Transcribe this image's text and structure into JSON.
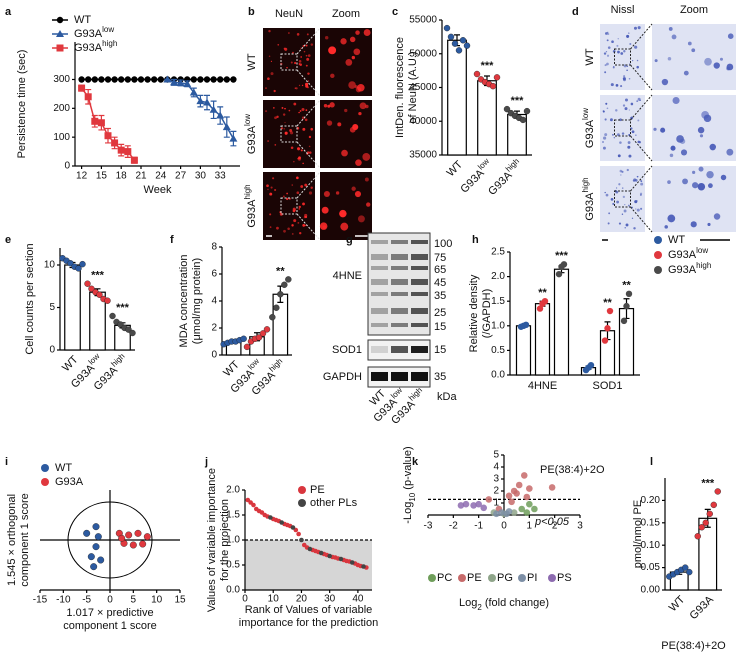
{
  "chart_data": [
    {
      "type": "line",
      "panel": "a",
      "ylabel": "Persistence time (sec)",
      "xlabel": "Week",
      "xlim": [
        11,
        36
      ],
      "ylim": [
        0,
        430
      ],
      "xticks": [
        12,
        15,
        18,
        21,
        24,
        27,
        30,
        33
      ],
      "yticks": [
        0,
        100,
        200,
        300
      ],
      "series": [
        {
          "name": "WT",
          "color": "#000000",
          "marker": "circle",
          "x": [
            12,
            13,
            14,
            15,
            16,
            17,
            18,
            19,
            20,
            21,
            22,
            23,
            24,
            25,
            26,
            27,
            28,
            29,
            30,
            31,
            32,
            33,
            34,
            35
          ],
          "values": [
            300,
            300,
            300,
            300,
            300,
            300,
            300,
            300,
            300,
            300,
            300,
            300,
            300,
            300,
            300,
            300,
            300,
            300,
            300,
            300,
            300,
            300,
            300,
            300
          ]
        },
        {
          "name": "G93Alow",
          "color": "#2c5aa0",
          "marker": "triangle",
          "x": [
            25,
            26,
            27,
            28,
            29,
            30,
            31,
            32,
            33,
            34,
            35
          ],
          "values": [
            300,
            290,
            288,
            285,
            255,
            225,
            220,
            195,
            175,
            135,
            95
          ],
          "errors": [
            0,
            10,
            10,
            10,
            15,
            20,
            25,
            30,
            30,
            35,
            25
          ]
        },
        {
          "name": "G93Ahigh",
          "color": "#e0383e",
          "marker": "square",
          "x": [
            12,
            13,
            14,
            15,
            16,
            17,
            18,
            19,
            20
          ],
          "values": [
            270,
            240,
            155,
            150,
            105,
            80,
            55,
            50,
            20
          ],
          "errors": [
            10,
            25,
            20,
            25,
            25,
            20,
            20,
            20,
            10
          ]
        }
      ]
    },
    {
      "type": "dotbar",
      "panel": "c",
      "ylabel": [
        "IntDen. fluorescence",
        "of NeuN (A.U.)"
      ],
      "categories": [
        "WT",
        "G93Alow",
        "G93Ahigh"
      ],
      "values": [
        52000,
        46000,
        41000
      ],
      "errors": [
        800,
        700,
        500
      ],
      "points": [
        [
          53800,
          52500,
          51500,
          50500,
          52000,
          51200
        ],
        [
          47000,
          46200,
          45800,
          45500,
          45200,
          46500
        ],
        [
          41800,
          41200,
          40800,
          40500,
          40200,
          41500
        ]
      ],
      "point_colors": [
        "#2c5aa0",
        "#e0383e",
        "#4a4a4a"
      ],
      "sig": [
        null,
        "***",
        "***"
      ],
      "ylim": [
        35000,
        55000
      ],
      "yticks": [
        35000,
        40000,
        45000,
        50000,
        55000
      ]
    },
    {
      "type": "dotbar",
      "panel": "e",
      "ylabel": "Cell counts per section",
      "categories": [
        "WT",
        "G93Alow",
        "G93Ahigh"
      ],
      "values": [
        10,
        6.8,
        2.9
      ],
      "errors": [
        0.3,
        0.4,
        0.3
      ],
      "points": [
        [
          10.8,
          10.5,
          10.2,
          9.8,
          9.6,
          10.1
        ],
        [
          7.8,
          7.2,
          6.8,
          6.5,
          6.0,
          5.8
        ],
        [
          4.0,
          3.3,
          3.0,
          2.6,
          2.4,
          2.0
        ]
      ],
      "point_colors": [
        "#2c5aa0",
        "#e0383e",
        "#4a4a4a"
      ],
      "sig": [
        null,
        "***",
        "***"
      ],
      "ylim": [
        0,
        12
      ],
      "yticks": [
        0,
        5,
        10
      ]
    },
    {
      "type": "dotbar",
      "panel": "f",
      "ylabel": [
        "MDA concentration",
        "(μmol/mg protein)"
      ],
      "categories": [
        "WT",
        "G93Alow",
        "G93Ahigh"
      ],
      "values": [
        1.0,
        1.35,
        4.5
      ],
      "errors": [
        0.1,
        0.3,
        0.6
      ],
      "points": [
        [
          0.8,
          0.9,
          1.0,
          1.0,
          1.1,
          1.2
        ],
        [
          0.6,
          1.0,
          1.2,
          1.3,
          1.6,
          1.9
        ],
        [
          2.8,
          3.5,
          4.5,
          5.2,
          5.6
        ]
      ],
      "point_colors": [
        "#2c5aa0",
        "#e0383e",
        "#4a4a4a"
      ],
      "sig": [
        null,
        null,
        "**"
      ],
      "ylim": [
        0,
        8
      ],
      "yticks": [
        0,
        2,
        4,
        6,
        8
      ]
    },
    {
      "type": "groupbar",
      "panel": "h",
      "ylabel": [
        "Relative density",
        "(/GAPDH)"
      ],
      "categories": [
        "4HNE",
        "SOD1"
      ],
      "ylim": [
        0,
        2.5
      ],
      "yticks": [
        {
          "value": 0,
          "label": "0.0"
        },
        0.5,
        {
          "value": 1,
          "label": "1.0"
        },
        1.5,
        {
          "value": 2,
          "label": "2.0"
        },
        2.5
      ],
      "series": [
        {
          "name": "WT",
          "color": "#2c5aa0",
          "values": [
            1.0,
            0.15
          ],
          "errors": [
            0.02,
            0.03
          ],
          "points": [
            [
              0.98,
              1.0,
              1.02
            ],
            [
              0.1,
              0.15,
              0.2
            ]
          ],
          "sig": [
            null,
            null
          ]
        },
        {
          "name": "G93Alow",
          "color": "#e0383e",
          "values": [
            1.45,
            0.9
          ],
          "errors": [
            0.05,
            0.18
          ],
          "points": [
            [
              1.35,
              1.45,
              1.5
            ],
            [
              0.7,
              0.95,
              1.3
            ]
          ],
          "sig": [
            "**",
            "**"
          ]
        },
        {
          "name": "G93Ahigh",
          "color": "#4a4a4a",
          "values": [
            2.15,
            1.35
          ],
          "errors": [
            0.07,
            0.2
          ],
          "points": [
            [
              2.05,
              2.2,
              2.25
            ],
            [
              1.1,
              1.4,
              1.65
            ]
          ],
          "sig": [
            "***",
            "**"
          ]
        }
      ]
    },
    {
      "type": "scatter",
      "panel": "i",
      "xlabel": [
        "1.017 × predictive",
        "component 1 score"
      ],
      "ylabel": [
        "1.545 × orthogonal",
        "component 1 score"
      ],
      "xlim": [
        -15,
        15
      ],
      "ylim": [
        -15,
        15
      ],
      "xticks": [
        -15,
        -10,
        -5,
        0,
        5,
        10,
        15
      ],
      "series": [
        {
          "name": "WT",
          "color": "#2c5aa0",
          "x": [
            -3,
            -2.5,
            -5,
            -3,
            -4,
            -2,
            -3.5
          ],
          "values": [
            4,
            1,
            2,
            -2,
            -5,
            -6,
            -8
          ]
        },
        {
          "name": "G93A",
          "color": "#e0383e",
          "x": [
            2,
            4,
            6,
            8,
            3,
            5,
            7,
            2.5
          ],
          "values": [
            2,
            1.5,
            2,
            1,
            -1,
            -1.5,
            -1.2,
            0.5
          ]
        }
      ]
    },
    {
      "type": "vip",
      "panel": "j",
      "xlabel": [
        "Rank of Values of variable",
        "importance for the prediction"
      ],
      "ylabel": [
        "Values of variable importance",
        "for the projection"
      ],
      "xlim": [
        0,
        45
      ],
      "ylim": [
        0,
        2
      ],
      "xticks": [
        0,
        10,
        20,
        30,
        40
      ],
      "yticks": [
        {
          "value": 0,
          "label": "0.0"
        },
        0.5,
        {
          "value": 1,
          "label": "1.0"
        },
        1.5,
        {
          "value": 2,
          "label": "2.0"
        }
      ],
      "threshold": 1,
      "series": [
        {
          "name": "PE",
          "color": "#d9363e",
          "x": [
            1,
            2,
            3,
            4,
            5,
            6,
            7,
            8,
            10,
            11,
            12,
            14,
            15,
            16,
            18,
            19,
            21,
            22,
            24,
            25,
            26,
            28,
            29,
            31,
            32,
            33,
            35,
            36,
            37,
            39,
            40,
            41,
            43
          ],
          "values": [
            1.8,
            1.75,
            1.7,
            1.62,
            1.58,
            1.55,
            1.5,
            1.47,
            1.42,
            1.4,
            1.38,
            1.32,
            1.3,
            1.28,
            1.2,
            1.12,
            0.9,
            0.85,
            0.8,
            0.78,
            0.76,
            0.72,
            0.7,
            0.66,
            0.65,
            0.63,
            0.6,
            0.58,
            0.57,
            0.53,
            0.5,
            0.48,
            0.45
          ]
        },
        {
          "name": "other PLs",
          "color": "#444444",
          "x": [
            9,
            13,
            17,
            20,
            23,
            27,
            30,
            34,
            38,
            42
          ],
          "values": [
            1.45,
            1.35,
            1.25,
            1.0,
            0.82,
            0.74,
            0.68,
            0.62,
            0.55,
            0.47
          ]
        }
      ]
    },
    {
      "type": "volcano",
      "panel": "k",
      "xlabel": [
        "Log",
        "2",
        " (fold change)"
      ],
      "ylabel": [
        "-Log",
        "10",
        " (p-value)"
      ],
      "xlim": [
        -3,
        3
      ],
      "ylim": [
        0,
        5
      ],
      "xticks": [
        -3,
        -2,
        -1,
        0,
        1,
        2,
        3
      ],
      "yticks": [
        1,
        2,
        3,
        4,
        5
      ],
      "threshold": 1.3,
      "annotations": [
        "PE(38:4)+2O",
        "p<0.05"
      ],
      "series": [
        {
          "name": "PC",
          "color": "#6f9e5a",
          "x": [
            1.0,
            0.7,
            1.2,
            0.9
          ],
          "values": [
            0.9,
            0.5,
            0.5,
            0.2
          ]
        },
        {
          "name": "PE",
          "color": "#c76a6a",
          "x": [
            0.8,
            0.6,
            0.4,
            1.0,
            0.2,
            0.5,
            1.9,
            -0.6,
            0.9,
            -0.2,
            0.3
          ],
          "values": [
            3.3,
            2.5,
            2.0,
            2.2,
            1.6,
            1.8,
            2.3,
            1.3,
            1.5,
            0.5,
            1.1
          ]
        },
        {
          "name": "PG",
          "color": "#8fa58a",
          "x": [
            -0.4,
            0.0,
            0.4
          ],
          "values": [
            0.2,
            0.1,
            0.2
          ]
        },
        {
          "name": "PI",
          "color": "#7d8fa6",
          "x": [
            -0.1,
            0.1,
            0.2,
            -0.3
          ],
          "values": [
            0.2,
            0.1,
            0.3,
            0.1
          ]
        },
        {
          "name": "PS",
          "color": "#8d6bb0",
          "x": [
            -1.5,
            -1.2,
            -1.0,
            -1.7,
            -0.8
          ],
          "values": [
            0.9,
            0.8,
            0.9,
            0.8,
            0.6
          ]
        }
      ]
    },
    {
      "type": "dotbar",
      "panel": "l",
      "ylabel": "pmol/nmol PE",
      "xlabel": "PE(38:4)+2O",
      "categories": [
        "WT",
        "G93A"
      ],
      "values": [
        0.04,
        0.16
      ],
      "errors": [
        0.005,
        0.02
      ],
      "points": [
        [
          0.03,
          0.035,
          0.04,
          0.045,
          0.05,
          0.04
        ],
        [
          0.12,
          0.14,
          0.15,
          0.17,
          0.19,
          0.22
        ]
      ],
      "point_colors": [
        "#2c5aa0",
        "#e0383e"
      ],
      "sig": [
        null,
        "***"
      ],
      "ylim": [
        0,
        0.25
      ],
      "yticks": [
        {
          "value": 0,
          "label": "0.00"
        },
        0.05,
        {
          "value": 0.1,
          "label": "0.10"
        },
        0.15,
        {
          "value": 0.2,
          "label": "0.20"
        }
      ]
    }
  ],
  "images": [
    {
      "panel": "b",
      "headers": [
        "NeuN",
        "Zoom"
      ],
      "rows": [
        "WT",
        "G93Alow",
        "G93Ahigh"
      ]
    },
    {
      "panel": "d",
      "headers": [
        "Nissl",
        "Zoom"
      ],
      "rows": [
        "WT",
        "G93Alow",
        "G93Ahigh"
      ]
    },
    {
      "panel": "g",
      "labels": [
        "4HNE",
        "SOD1",
        "GAPDH"
      ],
      "markers": [
        100,
        75,
        65,
        45,
        35,
        25,
        15
      ],
      "sod1_marker": 15,
      "gapdh_marker": 35,
      "unit": "kDa",
      "lanes": [
        "WT",
        "G93Alow",
        "G93Ahigh"
      ]
    }
  ]
}
